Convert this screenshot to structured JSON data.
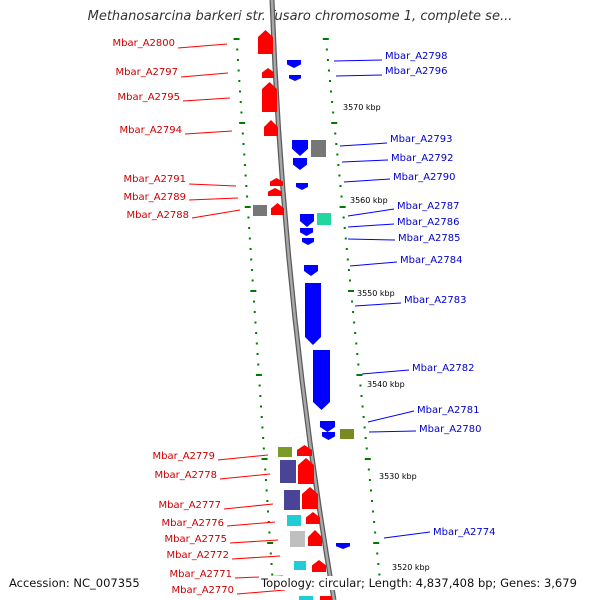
{
  "title": "Methanosarcina barkeri str. fusaro chromosome 1, complete se...",
  "accession": "Accession: NC_007355",
  "summary": "Topology: circular; Length: 4,837,408 bp; Genes: 3,679",
  "colors": {
    "forward": "#ff0000",
    "reverse": "#0000ff",
    "backbone": "#8c8c8c",
    "tick": "#007a00",
    "left_label": "#cc0000",
    "right_label": "#0000cc",
    "gray": "#777777",
    "light_gray": "#bfbfbf",
    "teal": "#22d6a0",
    "olive": "#7a8a20",
    "purple": "#4a4498",
    "cyan": "#22ccd6",
    "green": "#7a9a2a"
  },
  "scale_labels": [
    "3570 kbp",
    "3560 kbp",
    "3550 kbp",
    "3540 kbp",
    "3530 kbp",
    "3520 kbp"
  ],
  "left_genes": [
    "Mbar_A2800",
    "Mbar_A2797",
    "Mbar_A2795",
    "Mbar_A2794",
    "Mbar_A2791",
    "Mbar_A2789",
    "Mbar_A2788",
    "Mbar_A2779",
    "Mbar_A2778",
    "Mbar_A2777",
    "Mbar_A2776",
    "Mbar_A2775",
    "Mbar_A2772",
    "Mbar_A2771",
    "Mbar_A2770"
  ],
  "right_genes": [
    "Mbar_A2798",
    "Mbar_A2796",
    "Mbar_A2793",
    "Mbar_A2792",
    "Mbar_A2790",
    "Mbar_A2787",
    "Mbar_A2786",
    "Mbar_A2785",
    "Mbar_A2784",
    "Mbar_A2783",
    "Mbar_A2782",
    "Mbar_A2781",
    "Mbar_A2780",
    "Mbar_A2774"
  ]
}
